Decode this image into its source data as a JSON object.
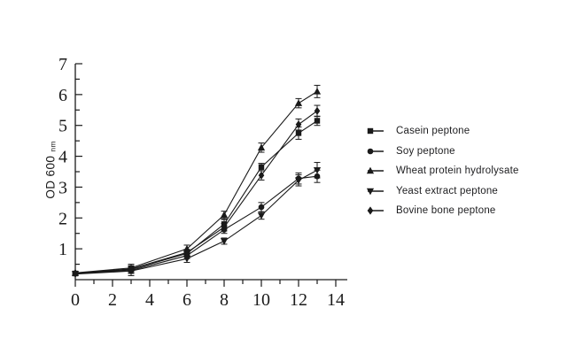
{
  "figure": {
    "background": "#ffffff",
    "ink_color": "#1a1a1a"
  },
  "y_axis": {
    "label": "OD 600",
    "label_subscript": "nm"
  },
  "chart_data": {
    "type": "line",
    "title": "",
    "xlabel": "",
    "ylabel": "OD 600 nm",
    "xlim": [
      0,
      14.6
    ],
    "ylim": [
      0,
      7
    ],
    "xticks": [
      0,
      2,
      4,
      6,
      8,
      10,
      12,
      14
    ],
    "yticks": [
      1,
      2,
      3,
      4,
      5,
      6,
      7
    ],
    "minor_ticks": "x: odd integers, y: 0.5 steps",
    "grid": false,
    "error_bars": true,
    "legend_position": "right-outside",
    "axis_color": "#1a1a1a",
    "x": [
      0,
      3,
      6,
      8,
      10,
      12,
      13
    ],
    "series": [
      {
        "id": "casein",
        "name": "Casein peptone",
        "marker": "square",
        "y": [
          0.2,
          0.33,
          0.85,
          1.8,
          3.65,
          4.75,
          5.15
        ],
        "err": [
          0.05,
          0.12,
          0.1,
          0.15,
          0.12,
          0.2,
          0.15
        ]
      },
      {
        "id": "soy",
        "name": "Soy peptone",
        "marker": "circle",
        "y": [
          0.2,
          0.3,
          0.78,
          1.62,
          2.35,
          3.28,
          3.35
        ],
        "err": [
          0.05,
          0.1,
          0.1,
          0.12,
          0.15,
          0.18,
          0.2
        ]
      },
      {
        "id": "wheat",
        "name": "Wheat protein hydrolysate",
        "marker": "triangle-up",
        "y": [
          0.22,
          0.38,
          1.0,
          2.1,
          4.28,
          5.72,
          6.1
        ],
        "err": [
          0.05,
          0.12,
          0.12,
          0.12,
          0.15,
          0.15,
          0.2
        ]
      },
      {
        "id": "yeast",
        "name": "Yeast extract peptone",
        "marker": "triangle-down",
        "y": [
          0.18,
          0.28,
          0.68,
          1.25,
          2.08,
          3.22,
          3.55
        ],
        "err": [
          0.05,
          0.15,
          0.12,
          0.1,
          0.12,
          0.18,
          0.25
        ]
      },
      {
        "id": "bovine",
        "name": "Bovine bone peptone",
        "marker": "diamond",
        "y": [
          0.21,
          0.35,
          0.88,
          1.7,
          3.38,
          5.03,
          5.47
        ],
        "err": [
          0.05,
          0.1,
          0.1,
          0.12,
          0.15,
          0.18,
          0.18
        ]
      }
    ]
  }
}
